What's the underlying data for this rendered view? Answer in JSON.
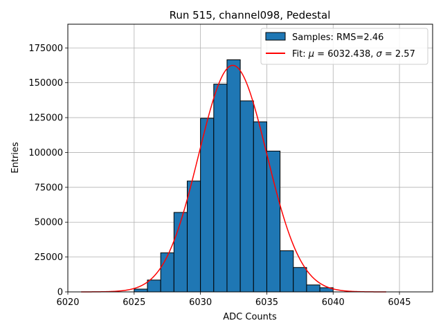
{
  "chart_data": {
    "type": "bar",
    "title": "Run 515, channel098, Pedestal",
    "xlabel": "ADC Counts",
    "ylabel": "Entries",
    "xlim": [
      6020,
      6047.5
    ],
    "ylim": [
      0,
      192000
    ],
    "xticks": [
      6020,
      6025,
      6030,
      6035,
      6040,
      6045
    ],
    "yticks": [
      0,
      25000,
      50000,
      75000,
      100000,
      125000,
      150000,
      175000
    ],
    "grid": true,
    "legend_position": "top-right",
    "histogram": {
      "name": "Samples: RMS=2.46",
      "color": "#1f77b4",
      "bin_edges": [
        6025,
        6026,
        6027,
        6028,
        6029,
        6030,
        6031,
        6032,
        6033,
        6034,
        6035,
        6036,
        6037,
        6038,
        6039,
        6040
      ],
      "values": [
        2000,
        8500,
        28000,
        57000,
        79500,
        124500,
        149000,
        166500,
        137000,
        122000,
        101000,
        29500,
        17500,
        5000,
        3000
      ]
    },
    "fit": {
      "name": "Fit: μ = 6032.438, σ = 2.57",
      "name_prefix": "Fit: ",
      "mu_symbol": "μ",
      "mu_text": " = 6032.438, ",
      "sigma_symbol": "σ",
      "sigma_text": " = 2.57",
      "color": "#ff0000",
      "mu": 6032.438,
      "sigma": 2.57,
      "amplitude": 162500,
      "x_range": [
        6021,
        6044
      ]
    }
  }
}
